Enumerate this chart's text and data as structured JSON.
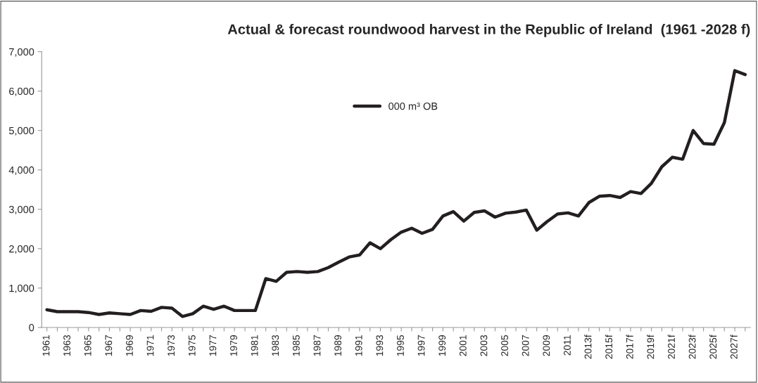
{
  "chart_data": {
    "type": "line",
    "title": "Actual & forecast roundwood harvest in the Republic of Ireland  (1961 -2028 f)",
    "categories": [
      "1961",
      null,
      "1963",
      null,
      "1965",
      null,
      "1967",
      null,
      "1969",
      null,
      "1971",
      null,
      "1973",
      null,
      "1975",
      null,
      "1977",
      null,
      "1979",
      null,
      "1981",
      null,
      "1983",
      null,
      "1985",
      null,
      "1987",
      null,
      "1989",
      null,
      "1991",
      null,
      "1993",
      null,
      "1995",
      null,
      "1997",
      null,
      "1999",
      null,
      "2001",
      null,
      "2003",
      null,
      "2005",
      null,
      "2007",
      null,
      "2009",
      null,
      "2011",
      null,
      "2013f",
      null,
      "2015f",
      null,
      "2017f",
      null,
      "2019f",
      null,
      "2021f",
      null,
      "2023f",
      null,
      "2025f",
      null,
      "2027f",
      null
    ],
    "series": [
      {
        "name": "000 m³ OB",
        "color": "#231f20",
        "values": [
          450,
          400,
          400,
          400,
          380,
          330,
          370,
          350,
          330,
          430,
          410,
          510,
          490,
          280,
          350,
          540,
          460,
          540,
          430,
          430,
          430,
          1240,
          1170,
          1400,
          1420,
          1400,
          1420,
          1520,
          1660,
          1790,
          1840,
          2150,
          2000,
          2230,
          2420,
          2520,
          2390,
          2490,
          2830,
          2940,
          2700,
          2920,
          2960,
          2800,
          2900,
          2930,
          2980,
          2470,
          2690,
          2880,
          2910,
          2830,
          3170,
          3330,
          3350,
          3300,
          3450,
          3400,
          3660,
          4080,
          4320,
          4270,
          5000,
          4670,
          4650,
          5200,
          6520,
          6420
        ]
      }
    ],
    "ylim": [
      0,
      7000
    ],
    "yticks": [
      {
        "value": 0,
        "label": "0"
      },
      {
        "value": 1000,
        "label": "1,000"
      },
      {
        "value": 2000,
        "label": "2,000"
      },
      {
        "value": 3000,
        "label": "3,000"
      },
      {
        "value": 4000,
        "label": "4,000"
      },
      {
        "value": 5000,
        "label": "5,000"
      },
      {
        "value": 6000,
        "label": "6,000"
      },
      {
        "value": 7000,
        "label": "7,000"
      }
    ],
    "legend": "top",
    "grid": false,
    "marker": "none",
    "line_style": "solid"
  }
}
